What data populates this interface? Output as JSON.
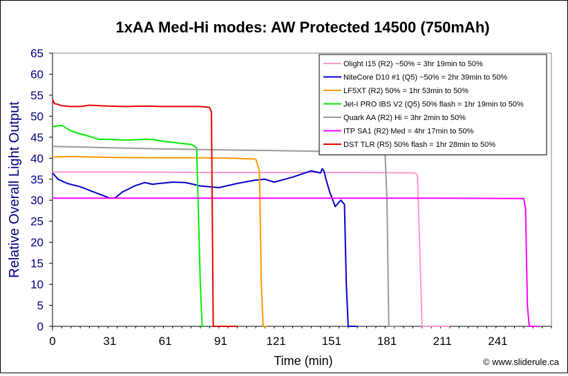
{
  "chart_data": {
    "type": "line",
    "title": "1xAA Med-Hi modes: AW Protected 14500 (750mAh)",
    "xlabel": "Time (min)",
    "ylabel": "Relative Overall Light Output",
    "xlim": [
      0,
      270
    ],
    "ylim": [
      0,
      65
    ],
    "xticks": [
      0,
      31,
      61,
      91,
      121,
      151,
      181,
      211,
      241
    ],
    "yticks": [
      0,
      5,
      10,
      15,
      20,
      25,
      30,
      35,
      40,
      45,
      50,
      55,
      60,
      65
    ],
    "grid": false,
    "legend_position": "top-right",
    "credit": "© www.sliderule.ca",
    "series": [
      {
        "name": "Olight I15 (R2) ~50% = 3hr 19min to 50%",
        "color": "#ff99cc",
        "x": [
          0,
          40,
          80,
          120,
          160,
          196,
          197.5,
          199,
          200,
          215
        ],
        "y": [
          36.7,
          36.7,
          36.6,
          36.6,
          36.6,
          36.5,
          36,
          15,
          0,
          0
        ]
      },
      {
        "name": "NiteCore D10 #1 (Q5) ~50% = 2hr 39min to 50%",
        "color": "#0000cc",
        "x": [
          0,
          3,
          8,
          15,
          25,
          31,
          34,
          38,
          45,
          50,
          54,
          58,
          65,
          72,
          80,
          85,
          90,
          100,
          110,
          115,
          120,
          130,
          140,
          145,
          146,
          147,
          148,
          150,
          153,
          156,
          158,
          159,
          160,
          160.5,
          161,
          162,
          165
        ],
        "y": [
          36.5,
          35,
          34,
          33.2,
          31.5,
          30.5,
          30.6,
          32,
          33.5,
          34.2,
          33.8,
          34,
          34.3,
          34.2,
          33.4,
          33.2,
          33,
          34,
          34.8,
          35,
          34.3,
          35.5,
          37,
          36.5,
          37.5,
          36.8,
          35,
          32,
          28.5,
          30,
          29,
          10,
          0,
          0,
          0,
          0,
          0
        ]
      },
      {
        "name": "LF5XT (R2) 50% = 1hr 53min to 50%",
        "color": "#ff9900",
        "x": [
          0,
          10,
          30,
          60,
          80,
          95,
          110,
          112,
          113,
          114,
          116
        ],
        "y": [
          40.3,
          40.4,
          40.2,
          40.1,
          40.1,
          40,
          39.8,
          37,
          10,
          0,
          0
        ]
      },
      {
        "name": "Jet-I PRO IBS V2 (Q5) 50% flash = 1hr 19min to 50%",
        "color": "#00ee00",
        "x": [
          0,
          5,
          10,
          15,
          20,
          25,
          30,
          40,
          50,
          55,
          60,
          65,
          70,
          75,
          78,
          80,
          81,
          82
        ],
        "y": [
          47.5,
          47.8,
          46.5,
          45.8,
          45.2,
          44.5,
          44.5,
          44.3,
          44.5,
          44.4,
          44,
          43.8,
          43.5,
          43.3,
          42.5,
          10,
          0,
          0
        ]
      },
      {
        "name": "Quark AA (R2) Hi = 3hr 2min to 50%",
        "color": "#999999",
        "x": [
          0,
          30,
          60,
          90,
          120,
          150,
          160,
          164,
          166,
          168,
          170,
          173,
          176,
          180,
          181,
          182,
          183,
          188
        ],
        "y": [
          42.8,
          42.5,
          42.2,
          42,
          41.8,
          41.6,
          41.5,
          41.6,
          42.7,
          41.8,
          41.3,
          41,
          41,
          41,
          30,
          0,
          0,
          0
        ]
      },
      {
        "name": "ITP SA1 (R2) Med = 4hr 17min to 50%",
        "color": "#ff00ff",
        "x": [
          0,
          100,
          200,
          255,
          256,
          257,
          258,
          263
        ],
        "y": [
          30.5,
          30.5,
          30.5,
          30.4,
          28,
          5,
          0,
          0
        ]
      },
      {
        "name": "DST TLR (R5) 50% flash = 1hr 28min to 50%",
        "color": "#ee0000",
        "x": [
          0,
          0.5,
          1,
          3,
          5,
          10,
          15,
          20,
          30,
          40,
          50,
          60,
          70,
          80,
          85,
          86,
          87,
          88,
          90,
          100
        ],
        "y": [
          54,
          53.5,
          53,
          52.8,
          52.5,
          52.3,
          52.3,
          52.6,
          52.4,
          52.3,
          52.4,
          52.3,
          52.3,
          52.3,
          52.1,
          51,
          0,
          0,
          0,
          0
        ]
      }
    ]
  }
}
